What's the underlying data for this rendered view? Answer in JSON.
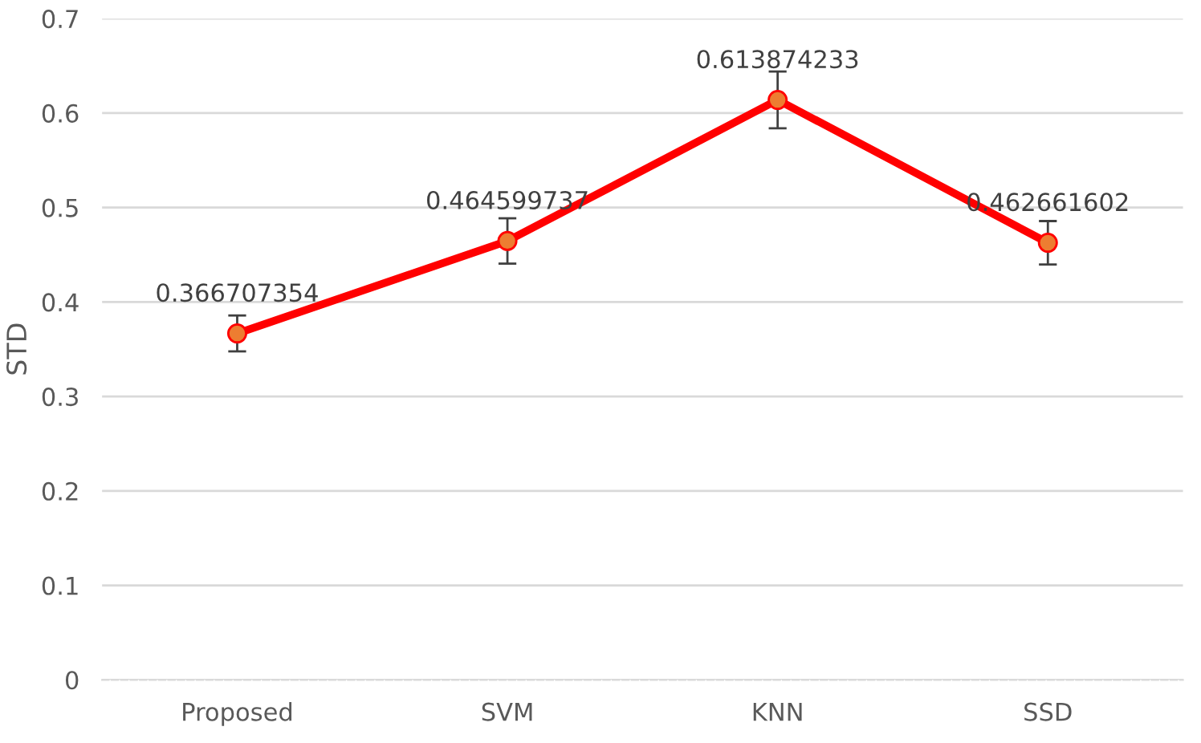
{
  "chart_data": {
    "type": "line",
    "ylabel": "STD",
    "categories": [
      "Proposed",
      "SVM",
      "KNN",
      "SSD"
    ],
    "series": [
      {
        "color": "#ff0000",
        "values": [
          0.366707354,
          0.464599737,
          0.613874233,
          0.462661602
        ],
        "errors": [
          0.019,
          0.024,
          0.03,
          0.023
        ]
      }
    ],
    "marker": "circle",
    "line_style": "solid",
    "data_labels": true,
    "grid": "y",
    "ylim": [
      0,
      0.7
    ],
    "yticks": [
      0,
      0.1,
      0.2,
      0.3,
      0.4,
      0.5,
      0.6,
      0.7
    ]
  }
}
